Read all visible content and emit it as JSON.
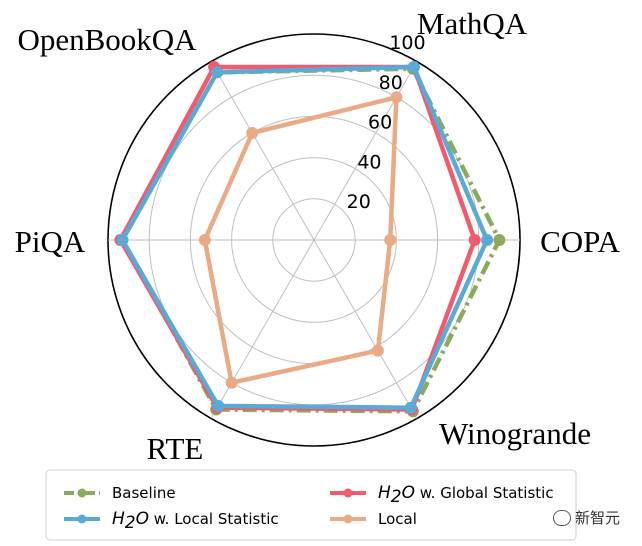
{
  "chart_data": {
    "type": "radar",
    "axes": [
      "MathQA",
      "COPA",
      "Winogrande",
      "RTE",
      "PiQA",
      "OpenBookQA"
    ],
    "rlim": [
      0,
      100
    ],
    "rticks": [
      20,
      40,
      60,
      80,
      100
    ],
    "grid": true,
    "legend_position": "bottom",
    "series": [
      {
        "name": "Baseline",
        "legend_prefix": "",
        "legend_suffix": "Baseline",
        "color": "#8aab5a",
        "style": "dashdot",
        "values": [
          96,
          90,
          96,
          95,
          93,
          94
        ]
      },
      {
        "name": "H2O w. Global Statistic",
        "legend_prefix": "H",
        "legend_sub": "2",
        "legend_mid": "O",
        "legend_suffix": " w. Global Statistic",
        "color": "#f25a6e",
        "style": "solid",
        "values": [
          97,
          78,
          95,
          94,
          94,
          97
        ]
      },
      {
        "name": "H2O w. Local Statistic",
        "legend_prefix": "H",
        "legend_sub": "2",
        "legend_mid": "O",
        "legend_suffix": " w. Local Statistic",
        "color": "#5aaad6",
        "style": "solid",
        "values": [
          97,
          84,
          94,
          93,
          93,
          94
        ]
      },
      {
        "name": "Local",
        "legend_prefix": "",
        "legend_suffix": "Local",
        "color": "#eaaa85",
        "style": "solid",
        "values": [
          80,
          37,
          62,
          80,
          53,
          60
        ]
      }
    ]
  },
  "watermark": {
    "text": "新智元"
  }
}
